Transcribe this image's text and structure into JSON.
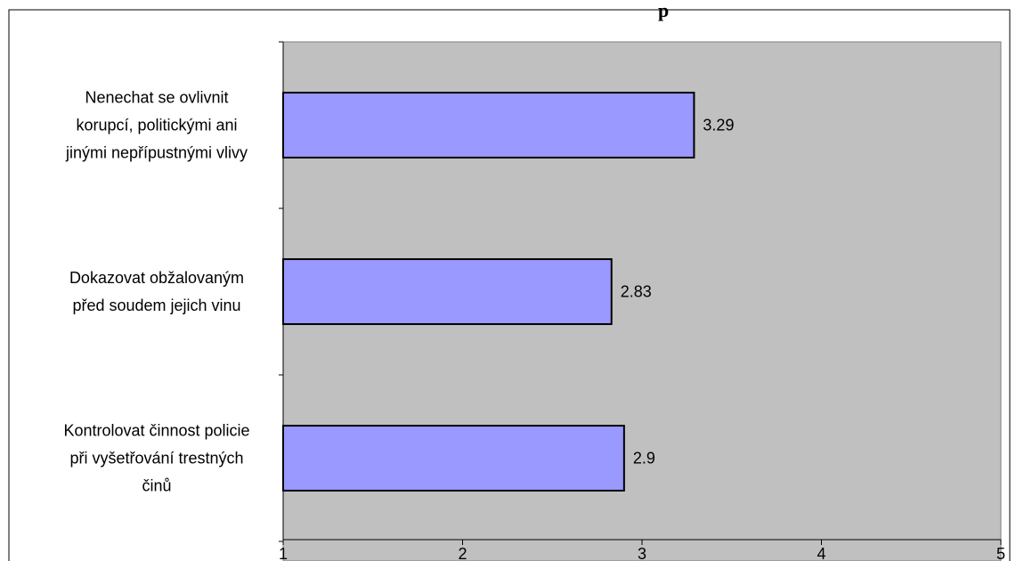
{
  "colors": {
    "plot_background": "#c0c0c0",
    "bar_fill": "#9999ff",
    "bar_stroke": "#000000",
    "border": "#000000"
  },
  "chart_data": {
    "type": "bar",
    "orientation": "horizontal",
    "title_fragment": "p",
    "categories": [
      [
        "Nenechat se ovlivnit",
        "korupcí, politickými ani",
        "jinými nepřípustnými vlivy"
      ],
      [
        "Dokazovat obžalovaným",
        "před soudem jejich vinu"
      ],
      [
        "Kontrolovat činnost policie",
        "při vyšetřování trestných",
        "činů"
      ]
    ],
    "values": [
      3.29,
      2.83,
      2.9
    ],
    "value_labels": [
      "3.29",
      "2.83",
      "2.9"
    ],
    "xlim": [
      1,
      5
    ],
    "xticks": [
      1,
      2,
      3,
      4,
      5
    ],
    "xtick_labels": [
      "1",
      "2",
      "3",
      "4",
      "5"
    ],
    "grid": false,
    "legend": "none"
  }
}
